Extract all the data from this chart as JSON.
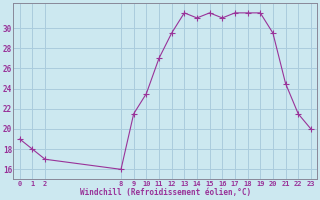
{
  "x": [
    0,
    1,
    2,
    8,
    9,
    10,
    11,
    12,
    13,
    14,
    15,
    16,
    17,
    18,
    19,
    20,
    21,
    22,
    23
  ],
  "y": [
    19,
    18,
    17,
    16,
    21.5,
    23.5,
    27,
    29.5,
    31.5,
    31,
    31.5,
    31,
    31.5,
    31.5,
    31.5,
    29.5,
    24.5,
    21.5,
    20
  ],
  "line_color": "#993399",
  "marker": "+",
  "marker_size": 4,
  "bg_color": "#cce8f0",
  "grid_color": "#aaccdd",
  "xlabel": "Windchill (Refroidissement éolien,°C)",
  "xlabel_color": "#993399",
  "tick_color": "#993399",
  "axis_color": "#888899",
  "yticks": [
    16,
    18,
    20,
    22,
    24,
    26,
    28,
    30
  ],
  "xticks": [
    0,
    1,
    2,
    8,
    9,
    10,
    11,
    12,
    13,
    14,
    15,
    16,
    17,
    18,
    19,
    20,
    21,
    22,
    23
  ],
  "ylim": [
    15.0,
    32.5
  ],
  "xlim": [
    -0.5,
    23.5
  ]
}
